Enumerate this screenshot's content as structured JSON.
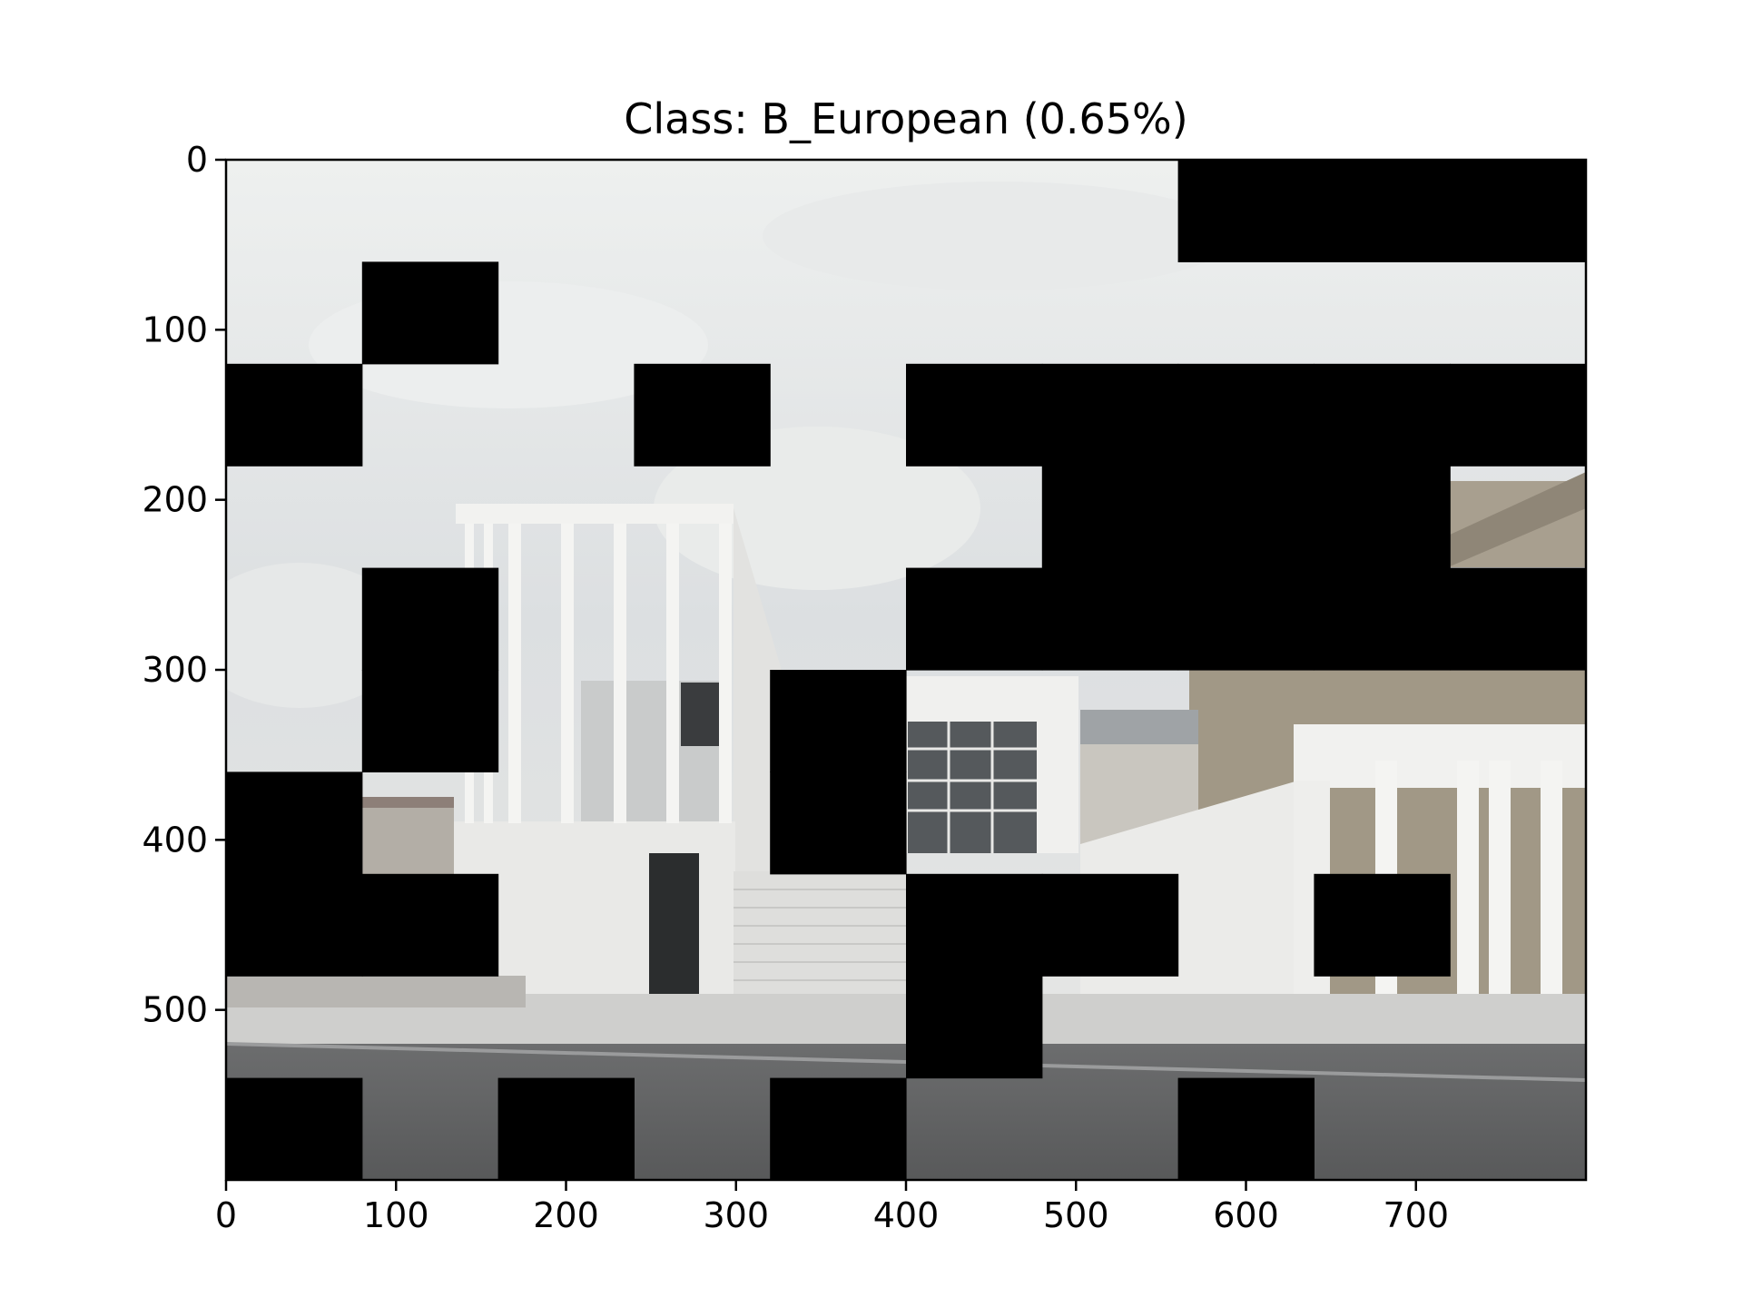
{
  "chart_data": {
    "type": "heatmap",
    "subtype": "image-with-occlusion-mask",
    "title": "Class: B_European (0.65%)",
    "xlabel": "",
    "ylabel": "",
    "xlim": [
      0,
      800
    ],
    "ylim": [
      600,
      0
    ],
    "x_ticks": [
      0,
      100,
      200,
      300,
      400,
      500,
      600,
      700
    ],
    "y_ticks": [
      0,
      100,
      200,
      300,
      400,
      500
    ],
    "grid": false,
    "legend": "none",
    "patch_size": [
      80,
      60
    ],
    "grid_cols": 10,
    "grid_rows": 10,
    "occluded_patches": [
      [
        0,
        7
      ],
      [
        0,
        8
      ],
      [
        0,
        9
      ],
      [
        1,
        1
      ],
      [
        2,
        0
      ],
      [
        2,
        3
      ],
      [
        2,
        5
      ],
      [
        2,
        6
      ],
      [
        2,
        7
      ],
      [
        2,
        8
      ],
      [
        2,
        9
      ],
      [
        3,
        6
      ],
      [
        3,
        7
      ],
      [
        3,
        8
      ],
      [
        4,
        1
      ],
      [
        4,
        5
      ],
      [
        4,
        6
      ],
      [
        4,
        7
      ],
      [
        4,
        8
      ],
      [
        4,
        9
      ],
      [
        5,
        1
      ],
      [
        5,
        4
      ],
      [
        6,
        0
      ],
      [
        6,
        4
      ],
      [
        7,
        0
      ],
      [
        7,
        1
      ],
      [
        7,
        5
      ],
      [
        7,
        6
      ],
      [
        7,
        8
      ],
      [
        8,
        5
      ],
      [
        9,
        0
      ],
      [
        9,
        2
      ],
      [
        9,
        4
      ],
      [
        9,
        7
      ]
    ],
    "mask_color": "#000000",
    "image_content": "photograph of a modern white museum building with columns (James Simon Galerie)"
  },
  "colors": {
    "sky": "#dfe1e2",
    "building": "#ecebe8",
    "street": "#5a5b5c",
    "old_building": "#a39a8a"
  }
}
